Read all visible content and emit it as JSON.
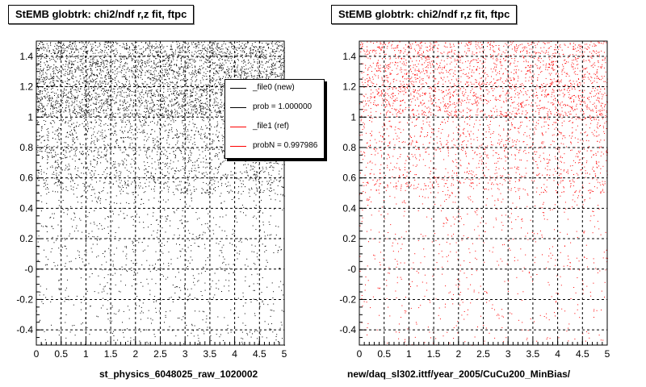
{
  "chart_data": [
    {
      "type": "scatter",
      "title": "StEMB globtrk: chi2/ndf r,z fit, ftpc",
      "xlabel": "st_physics_6048025_raw_1020002",
      "ylabel": "",
      "xlim": [
        0,
        5
      ],
      "ylim": [
        -0.5,
        1.5
      ],
      "xticks": [
        "0",
        "0.5",
        "1",
        "1.5",
        "2",
        "2.5",
        "3",
        "3.5",
        "4",
        "4.5",
        "5"
      ],
      "yticks": [
        "-0.4",
        "-0.2",
        "-0",
        "0.2",
        "0.4",
        "0.6",
        "0.8",
        "1",
        "1.2",
        "1.4"
      ],
      "grid": true,
      "series": [
        {
          "color": "#000000",
          "density": [
            {
              "y_from": -0.5,
              "y_to": 0.0,
              "points": 400
            },
            {
              "y_from": 0.0,
              "y_to": 0.5,
              "points": 550
            },
            {
              "y_from": 0.5,
              "y_to": 1.0,
              "points": 1700
            },
            {
              "y_from": 1.0,
              "y_to": 1.5,
              "points": 4000
            }
          ]
        }
      ],
      "legend": {
        "placement": "top-right",
        "entries": [
          {
            "label": "_file0 (new)",
            "color": "#000000"
          },
          {
            "label": "prob = 1.000000",
            "color": "#000000"
          },
          {
            "label": "_file1 (ref)",
            "color": "#ff0000"
          },
          {
            "label": "probN = 0.997986",
            "color": "#ff0000"
          }
        ]
      }
    },
    {
      "type": "scatter",
      "title": "StEMB globtrk: chi2/ndf r,z fit, ftpc",
      "xlabel": "new/daq_sl302.ittf/year_2005/CuCu200_MinBias/",
      "ylabel": "",
      "xlim": [
        0,
        5
      ],
      "ylim": [
        -0.5,
        1.5
      ],
      "xticks": [
        "0",
        "0.5",
        "1",
        "1.5",
        "2",
        "2.5",
        "3",
        "3.5",
        "4",
        "4.5",
        "5"
      ],
      "yticks": [
        "-0.4",
        "-0.2",
        "-0",
        "0.2",
        "0.4",
        "0.6",
        "0.8",
        "1",
        "1.2",
        "1.4"
      ],
      "grid": true,
      "series": [
        {
          "color": "#ff0000",
          "density": [
            {
              "y_from": -0.5,
              "y_to": 0.0,
              "points": 250
            },
            {
              "y_from": 0.0,
              "y_to": 0.5,
              "points": 350
            },
            {
              "y_from": 0.5,
              "y_to": 1.0,
              "points": 1100
            },
            {
              "y_from": 1.0,
              "y_to": 1.5,
              "points": 2200
            }
          ]
        }
      ]
    }
  ]
}
